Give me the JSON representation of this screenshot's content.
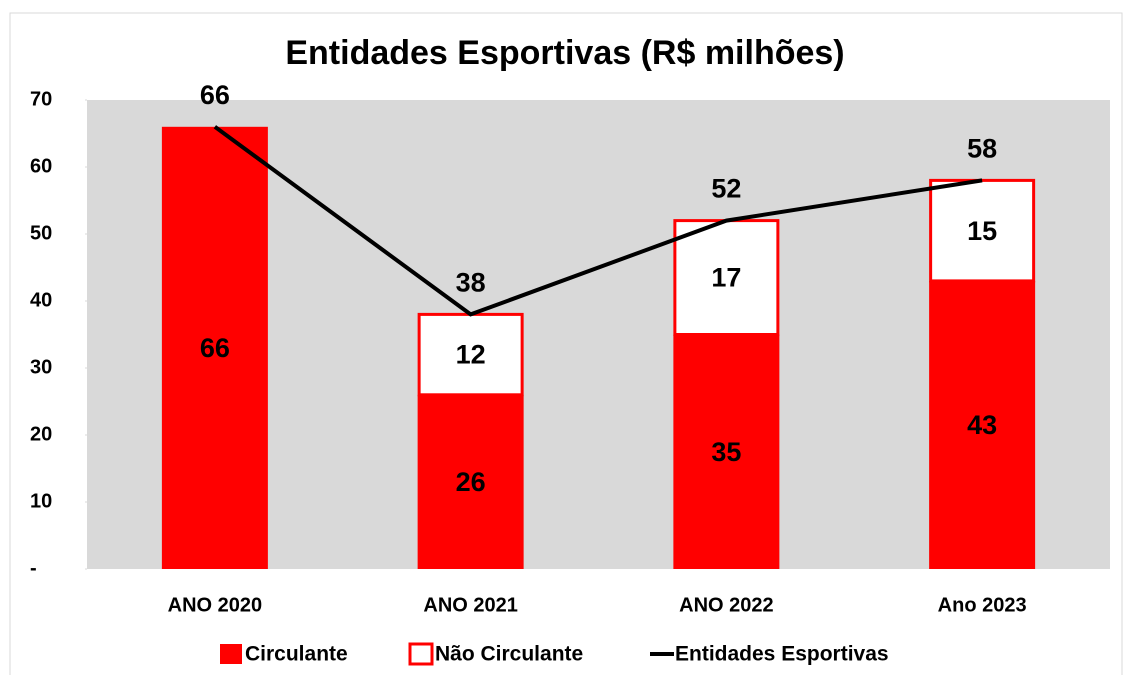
{
  "chart_data": {
    "type": "stacked_bar_line",
    "title": "Entidades Esportivas (R$ milhões)",
    "categories": [
      "ANO 2020",
      "ANO 2021",
      "ANO 2022",
      "Ano 2023"
    ],
    "series": [
      {
        "name": "Circulante",
        "type": "bar",
        "color": "#ff0000",
        "values": [
          66,
          26,
          35,
          43
        ]
      },
      {
        "name": "Não Circulante",
        "type": "bar",
        "color": "#ffffff",
        "edgecolor": "#ff0000",
        "values": [
          null,
          12,
          17,
          15
        ]
      },
      {
        "name": "Entidades Esportivas",
        "type": "line",
        "color": "#000000",
        "values": [
          66,
          38,
          52,
          58
        ]
      }
    ],
    "ylim": [
      0,
      70
    ],
    "yticks": [
      {
        "value": 0,
        "label": "-"
      },
      10,
      20,
      30,
      40,
      50,
      60,
      70
    ],
    "plot_bgcolor": "#d9d9d9",
    "legend": "bottom"
  }
}
